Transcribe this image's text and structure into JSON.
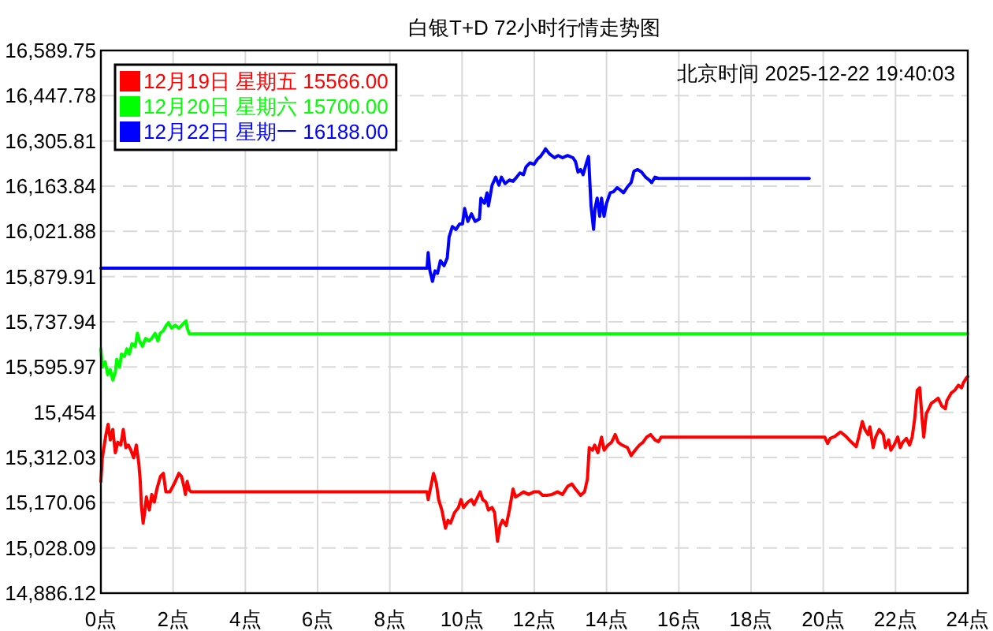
{
  "chart_data": {
    "type": "line",
    "title": "白银T+D 72小时行情走势图",
    "annotations": [
      "北京时间 2025-12-22 19:40:03"
    ],
    "xlim": [
      0,
      24
    ],
    "xticks": [
      {
        "value": 0,
        "label": "0点"
      },
      {
        "value": 2,
        "label": "2点"
      },
      {
        "value": 4,
        "label": "4点"
      },
      {
        "value": 6,
        "label": "6点"
      },
      {
        "value": 8,
        "label": "8点"
      },
      {
        "value": 10,
        "label": "10点"
      },
      {
        "value": 12,
        "label": "12点"
      },
      {
        "value": 14,
        "label": "14点"
      },
      {
        "value": 16,
        "label": "16点"
      },
      {
        "value": 18,
        "label": "18点"
      },
      {
        "value": 20,
        "label": "20点"
      },
      {
        "value": 22,
        "label": "22点"
      },
      {
        "value": 24,
        "label": "24点"
      }
    ],
    "ylim": [
      14886.12,
      16589.75
    ],
    "yticks": [
      {
        "value": 14886.12,
        "label": "14,886.12"
      },
      {
        "value": 15028.09,
        "label": "15,028.09"
      },
      {
        "value": 15170.06,
        "label": "15,170.06"
      },
      {
        "value": 15312.03,
        "label": "15,312.03"
      },
      {
        "value": 15454,
        "label": "15,454"
      },
      {
        "value": 15595.97,
        "label": "15,595.97"
      },
      {
        "value": 15737.94,
        "label": "15,737.94"
      },
      {
        "value": 15879.91,
        "label": "15,879.91"
      },
      {
        "value": 16021.88,
        "label": "16,021.88"
      },
      {
        "value": 16163.84,
        "label": "16,163.84"
      },
      {
        "value": 16305.81,
        "label": "16,305.81"
      },
      {
        "value": 16447.78,
        "label": "16,447.78"
      },
      {
        "value": 16589.75,
        "label": "16,589.75"
      }
    ],
    "grid": true,
    "legend": "top left",
    "series": [
      {
        "name": "12月19日 星期五 15566.00",
        "color": "#ff0000",
        "x": [
          0,
          0.04,
          0.14,
          0.2,
          0.26,
          0.33,
          0.4,
          0.47,
          0.55,
          0.62,
          0.69,
          0.76,
          0.83,
          0.91,
          0.98,
          1.05,
          1.09,
          1.12,
          1.17,
          1.22,
          1.26,
          1.34,
          1.41,
          1.48,
          1.55,
          1.65,
          1.73,
          1.8,
          1.91,
          1.99,
          2.06,
          2.16,
          2.23,
          2.3,
          2.34,
          2.39,
          2.45,
          2.5,
          9.03,
          9.06,
          9.15,
          9.21,
          9.29,
          9.35,
          9.44,
          9.54,
          9.61,
          9.68,
          9.79,
          9.9,
          9.97,
          10.04,
          10.16,
          10.26,
          10.33,
          10.43,
          10.5,
          10.57,
          10.66,
          10.73,
          10.83,
          10.9,
          10.98,
          11.05,
          11.12,
          11.22,
          11.31,
          11.41,
          11.48,
          11.6,
          11.7,
          11.84,
          11.99,
          12.13,
          12.23,
          12.35,
          12.49,
          12.64,
          12.78,
          12.92,
          13.04,
          13.14,
          13.28,
          13.39,
          13.47,
          13.52,
          13.61,
          13.67,
          13.76,
          13.86,
          13.93,
          14.04,
          14.14,
          14.24,
          14.32,
          14.43,
          14.58,
          14.68,
          14.79,
          14.91,
          15.01,
          15.11,
          15.22,
          15.34,
          15.44,
          15.51,
          20.04,
          20.12,
          20.19,
          20.33,
          20.48,
          20.62,
          20.76,
          20.91,
          20.98,
          21.08,
          21.15,
          21.24,
          21.29,
          21.38,
          21.45,
          21.55,
          21.66,
          21.72,
          21.81,
          21.87,
          21.96,
          22.06,
          22.13,
          22.2,
          22.3,
          22.39,
          22.46,
          22.53,
          22.6,
          22.67,
          22.73,
          22.78,
          22.85,
          22.92,
          22.99,
          23.09,
          23.18,
          23.28,
          23.38,
          23.42,
          23.54,
          23.64,
          23.74,
          23.83,
          23.88,
          23.97,
          24
        ],
        "values": [
          15237,
          15311,
          15384,
          15416,
          15367,
          15400,
          15327,
          15360,
          15351,
          15400,
          15343,
          15351,
          15335,
          15311,
          15351,
          15294,
          15239,
          15164,
          15106,
          15147,
          15188,
          15147,
          15196,
          15172,
          15213,
          15253,
          15262,
          15204,
          15204,
          15221,
          15237,
          15262,
          15253,
          15221,
          15196,
          15237,
          15209,
          15204,
          15204,
          15180,
          15229,
          15262,
          15229,
          15180,
          15147,
          15090,
          15115,
          15106,
          15139,
          15155,
          15180,
          15155,
          15172,
          15180,
          15164,
          15188,
          15204,
          15180,
          15172,
          15147,
          15155,
          15139,
          15049,
          15098,
          15115,
          15098,
          15147,
          15213,
          15188,
          15196,
          15204,
          15196,
          15204,
          15204,
          15193,
          15193,
          15196,
          15204,
          15196,
          15221,
          15229,
          15213,
          15193,
          15204,
          15245,
          15343,
          15335,
          15351,
          15327,
          15376,
          15335,
          15351,
          15360,
          15384,
          15360,
          15351,
          15343,
          15318,
          15335,
          15351,
          15360,
          15376,
          15384,
          15367,
          15362,
          15376,
          15376,
          15356,
          15372,
          15379,
          15392,
          15379,
          15362,
          15346,
          15376,
          15425,
          15400,
          15384,
          15408,
          15343,
          15376,
          15400,
          15384,
          15343,
          15367,
          15335,
          15351,
          15376,
          15343,
          15360,
          15372,
          15351,
          15376,
          15433,
          15523,
          15531,
          15441,
          15376,
          15449,
          15465,
          15482,
          15490,
          15498,
          15474,
          15465,
          15490,
          15514,
          15523,
          15539,
          15531,
          15547,
          15563,
          15566
        ]
      },
      {
        "name": "12月20日 星期六 15700.00",
        "color": "#00ff00",
        "x": [
          0,
          0.04,
          0.12,
          0.19,
          0.26,
          0.33,
          0.4,
          0.44,
          0.52,
          0.57,
          0.65,
          0.72,
          0.79,
          0.86,
          0.95,
          1.01,
          1.07,
          1.15,
          1.24,
          1.33,
          1.41,
          1.5,
          1.58,
          1.64,
          1.73,
          1.81,
          1.87,
          1.96,
          2.06,
          2.16,
          2.24,
          2.3,
          2.36,
          2.39,
          2.45,
          24
        ],
        "values": [
          15653,
          15596,
          15612,
          15572,
          15588,
          15555,
          15580,
          15620,
          15596,
          15637,
          15629,
          15653,
          15637,
          15669,
          15661,
          15702,
          15678,
          15661,
          15686,
          15678,
          15686,
          15702,
          15678,
          15702,
          15710,
          15727,
          15735,
          15718,
          15727,
          15718,
          15727,
          15735,
          15741,
          15718,
          15700,
          15700
        ]
      },
      {
        "name": "12月22日 星期一 16188.00",
        "color": "#0000ff",
        "x": [
          0,
          9.03,
          9.06,
          9.11,
          9.18,
          9.25,
          9.32,
          9.4,
          9.5,
          9.59,
          9.64,
          9.73,
          9.83,
          9.93,
          10.01,
          10.07,
          10.16,
          10.26,
          10.36,
          10.48,
          10.52,
          10.62,
          10.69,
          10.73,
          10.83,
          10.93,
          11.02,
          11.09,
          11.19,
          11.31,
          11.41,
          11.51,
          11.6,
          11.7,
          11.77,
          11.88,
          11.99,
          12.09,
          12.17,
          12.27,
          12.31,
          12.42,
          12.56,
          12.66,
          12.78,
          12.92,
          13.07,
          13.14,
          13.21,
          13.28,
          13.35,
          13.43,
          13.5,
          13.52,
          13.57,
          13.64,
          13.68,
          13.74,
          13.81,
          13.86,
          13.93,
          14,
          14.1,
          14.19,
          14.29,
          14.39,
          14.47,
          14.58,
          14.68,
          14.76,
          14.86,
          14.97,
          15.08,
          15.18,
          15.25,
          15.34,
          15.44,
          19.61
        ],
        "values": [
          15906,
          15906,
          15955,
          15898,
          15865,
          15898,
          15890,
          15930,
          15914,
          15939,
          16004,
          16037,
          16028,
          16045,
          16045,
          16094,
          16053,
          16077,
          16053,
          16061,
          16126,
          16110,
          16143,
          16102,
          16167,
          16192,
          16167,
          16192,
          16172,
          16183,
          16179,
          16192,
          16205,
          16200,
          16224,
          16237,
          16232,
          16249,
          16257,
          16273,
          16281,
          16265,
          16253,
          16260,
          16253,
          16260,
          16253,
          16241,
          16208,
          16216,
          16200,
          16232,
          16257,
          16216,
          16102,
          16028,
          16094,
          16126,
          16069,
          16126,
          16069,
          16110,
          16143,
          16146,
          16159,
          16151,
          16143,
          16162,
          16175,
          16211,
          16216,
          16208,
          16192,
          16183,
          16175,
          16192,
          16188,
          16188
        ]
      }
    ]
  }
}
